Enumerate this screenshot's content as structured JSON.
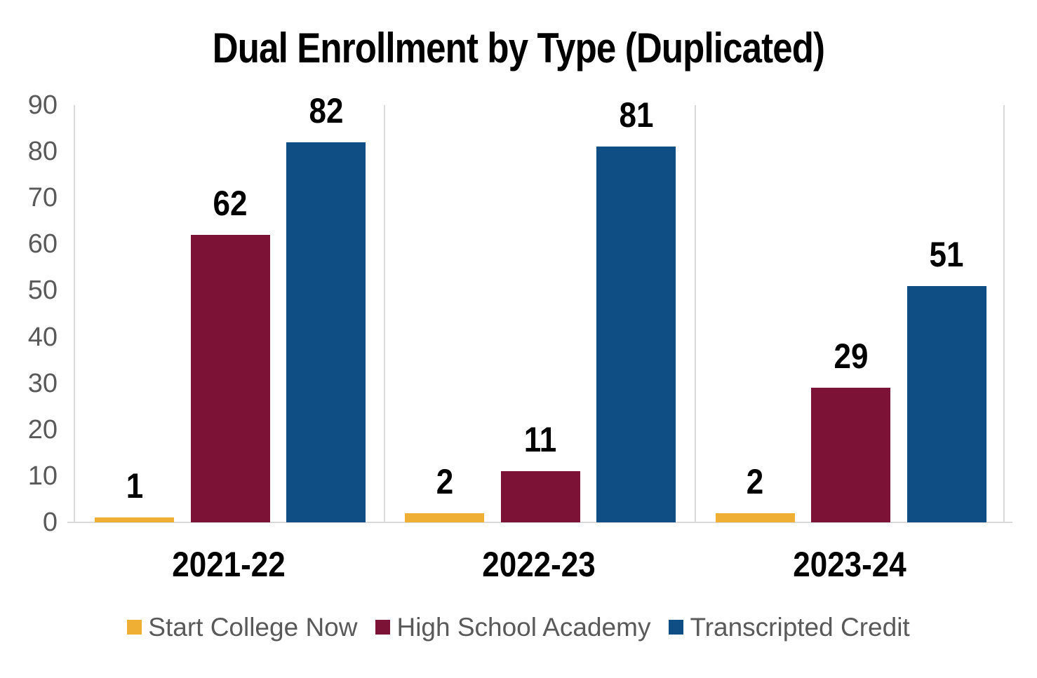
{
  "chart_data": {
    "type": "bar",
    "title": "Dual Enrollment by Type (Duplicated)",
    "categories": [
      "2021-22",
      "2022-23",
      "2023-24"
    ],
    "series": [
      {
        "name": "Start College Now",
        "color": "#EFAF35",
        "values": [
          1,
          2,
          2
        ]
      },
      {
        "name": "High School Academy",
        "color": "#7D1237",
        "values": [
          62,
          11,
          29
        ]
      },
      {
        "name": "Transcripted Credit",
        "color": "#0F4E84",
        "values": [
          82,
          81,
          51
        ]
      }
    ],
    "xlabel": "",
    "ylabel": "",
    "ylim": [
      0,
      90
    ],
    "y_ticks": [
      0,
      10,
      20,
      30,
      40,
      50,
      60,
      70,
      80,
      90
    ],
    "grid": "vertical-category-separators",
    "legend_position": "bottom",
    "data_labels": true
  },
  "palette": {
    "background": "#FFFFFF",
    "axis_text": "#595959",
    "grid_line": "#D9D9D9",
    "label_text": "#000000"
  }
}
